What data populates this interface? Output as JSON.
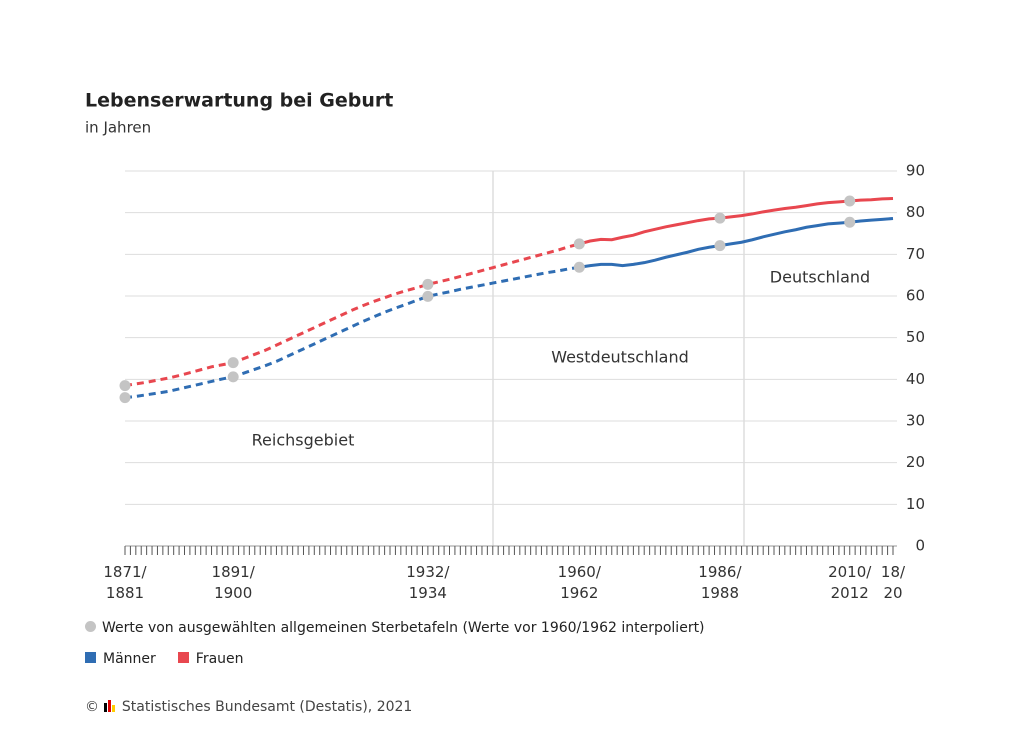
{
  "chart_data": {
    "type": "line",
    "title": "Lebenserwartung bei Geburt",
    "subtitle": "in Jahren",
    "categories": [
      "1871/\n1881",
      null,
      null,
      null,
      null,
      null,
      null,
      null,
      null,
      null,
      "1891/\n1900",
      null,
      null,
      null,
      null,
      null,
      null,
      null,
      null,
      null,
      null,
      null,
      null,
      null,
      null,
      null,
      null,
      null,
      "1932/\n1934",
      null,
      null,
      null,
      null,
      null,
      null,
      null,
      null,
      null,
      null,
      null,
      null,
      null,
      "1960/\n1962",
      null,
      null,
      null,
      null,
      null,
      null,
      null,
      null,
      null,
      null,
      null,
      null,
      "1986/\n1988",
      null,
      null,
      null,
      null,
      null,
      null,
      null,
      null,
      null,
      null,
      null,
      "2010/\n2012",
      null,
      null,
      null,
      "18/\n20"
    ],
    "series": [
      {
        "name": "Männer",
        "color": "#2f6db3",
        "values": [
          35.6,
          35.9,
          36.3,
          36.7,
          37.1,
          37.7,
          38.3,
          38.9,
          39.5,
          40.1,
          40.6,
          41.5,
          42.4,
          43.3,
          44.3,
          45.5,
          46.7,
          47.9,
          49.1,
          50.3,
          51.5,
          52.7,
          53.9,
          55.0,
          56.1,
          57.1,
          58.0,
          59.0,
          59.9,
          60.5,
          61.0,
          61.6,
          62.1,
          62.6,
          63.1,
          63.6,
          64.1,
          64.6,
          65.1,
          65.6,
          66.0,
          66.5,
          66.9,
          67.3,
          67.6,
          67.6,
          67.3,
          67.6,
          68.0,
          68.6,
          69.3,
          69.9,
          70.5,
          71.2,
          71.7,
          72.1,
          72.5,
          72.9,
          73.5,
          74.2,
          74.8,
          75.4,
          75.9,
          76.5,
          76.9,
          77.3,
          77.5,
          77.7,
          78.0,
          78.2,
          78.4,
          78.6
        ]
      },
      {
        "name": "Frauen",
        "color": "#e8474f",
        "values": [
          38.5,
          38.9,
          39.3,
          39.8,
          40.3,
          40.9,
          41.6,
          42.3,
          43.0,
          43.5,
          44.0,
          45.0,
          46.0,
          47.0,
          48.2,
          49.4,
          50.6,
          51.8,
          53.0,
          54.2,
          55.4,
          56.6,
          57.7,
          58.7,
          59.6,
          60.5,
          61.3,
          62.0,
          62.8,
          63.4,
          64.0,
          64.7,
          65.4,
          66.1,
          66.8,
          67.5,
          68.2,
          68.9,
          69.6,
          70.3,
          71.0,
          71.8,
          72.5,
          73.2,
          73.6,
          73.5,
          74.1,
          74.6,
          75.4,
          76.0,
          76.6,
          77.1,
          77.6,
          78.1,
          78.5,
          78.7,
          79.0,
          79.3,
          79.7,
          80.2,
          80.6,
          81.0,
          81.3,
          81.7,
          82.1,
          82.4,
          82.6,
          82.8,
          83.0,
          83.1,
          83.3,
          83.4
        ]
      }
    ],
    "dashed_until": 42,
    "marker_indices": [
      0,
      10,
      28,
      42,
      55,
      67
    ],
    "marker_color": "#c4c4c4",
    "ylim": [
      0,
      90
    ],
    "yticks": [
      0,
      10,
      20,
      30,
      40,
      50,
      60,
      70,
      80,
      90
    ],
    "grid": true,
    "regions": [
      "Reichsgebiet",
      "Westdeutschland",
      "Deutschland"
    ],
    "marker_note": "Werte von ausgewählten allgemeinen Sterbetafeln (Werte vor 1960/1962 interpoliert)",
    "copyright": "©",
    "source": "Statistisches Bundesamt (Destatis), 2021"
  }
}
